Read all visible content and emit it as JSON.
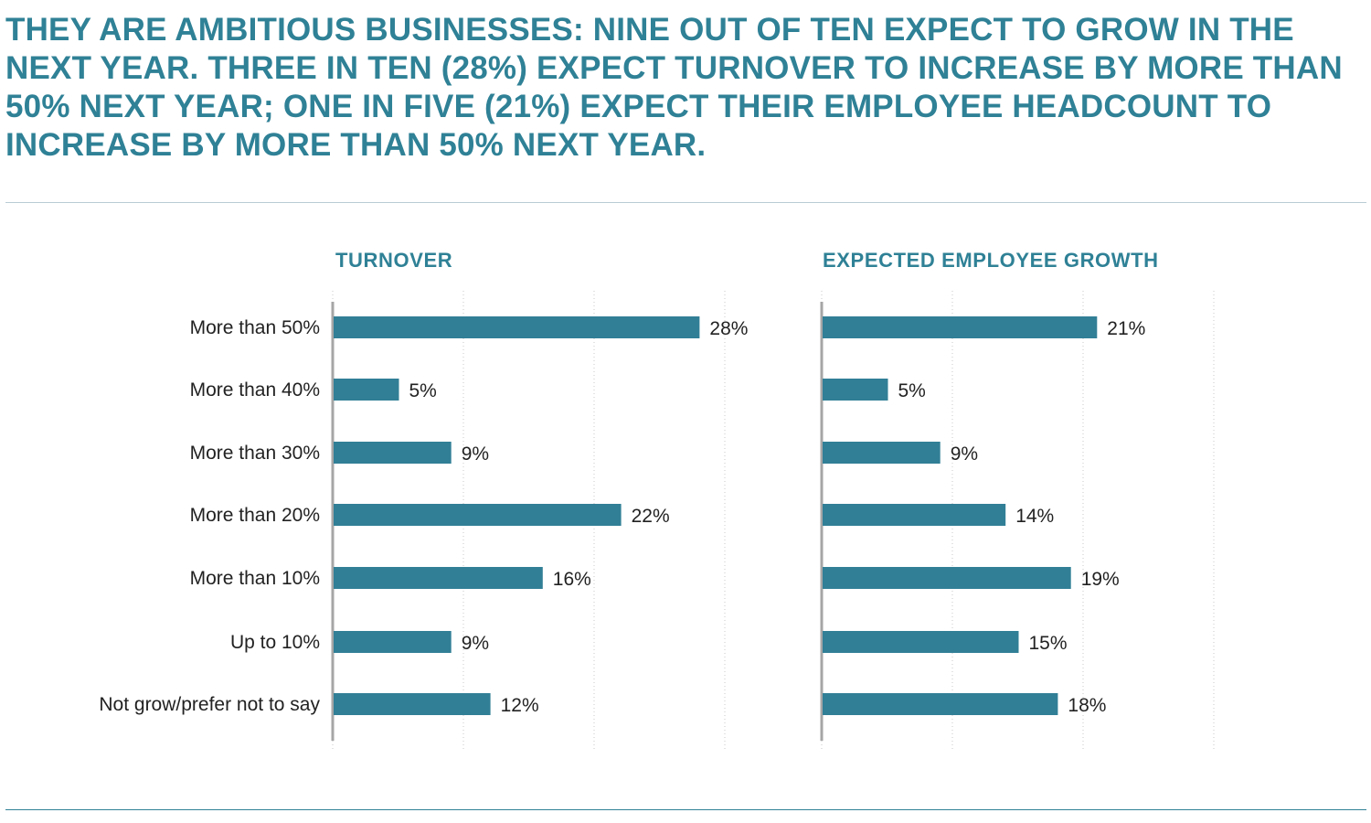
{
  "headline": "THEY ARE AMBITIOUS BUSINESSES: NINE OUT OF TEN EXPECT TO GROW IN THE NEXT YEAR. THREE IN TEN (28%) EXPECT TURNOVER TO INCREASE BY MORE THAN 50% NEXT YEAR; ONE IN FIVE (21%) EXPECT THEIR EMPLOYEE HEADCOUNT TO INCREASE BY MORE THAN 50% NEXT YEAR.",
  "colors": {
    "accent": "#2f8196",
    "bar": "#317f96",
    "axis": "#a6a6a6",
    "grid": "#c8c8c8",
    "text": "#222222",
    "rule_top": "#b9cbd4"
  },
  "chart_data": [
    {
      "type": "bar",
      "orientation": "horizontal",
      "title": "TURNOVER",
      "categories": [
        "More than 50%",
        "More than 40%",
        "More than 30%",
        "More than 20%",
        "More than 10%",
        "Up to 10%",
        "Not grow/prefer not to say"
      ],
      "values": [
        28,
        5,
        9,
        22,
        16,
        9,
        12
      ],
      "value_labels": [
        "28%",
        "5%",
        "9%",
        "22%",
        "16%",
        "9%",
        "12%"
      ],
      "xlim": [
        0,
        30
      ],
      "grid": "dotted vertical"
    },
    {
      "type": "bar",
      "orientation": "horizontal",
      "title": "EXPECTED EMPLOYEE GROWTH",
      "categories": [
        "More than 50%",
        "More than 40%",
        "More than 30%",
        "More than 20%",
        "More than 10%",
        "Up to 10%",
        "Not grow/prefer not to say"
      ],
      "values": [
        21,
        5,
        9,
        14,
        19,
        15,
        18
      ],
      "value_labels": [
        "21%",
        "5%",
        "9%",
        "14%",
        "19%",
        "15%",
        "18%"
      ],
      "xlim": [
        0,
        30
      ],
      "grid": "dotted vertical"
    }
  ]
}
